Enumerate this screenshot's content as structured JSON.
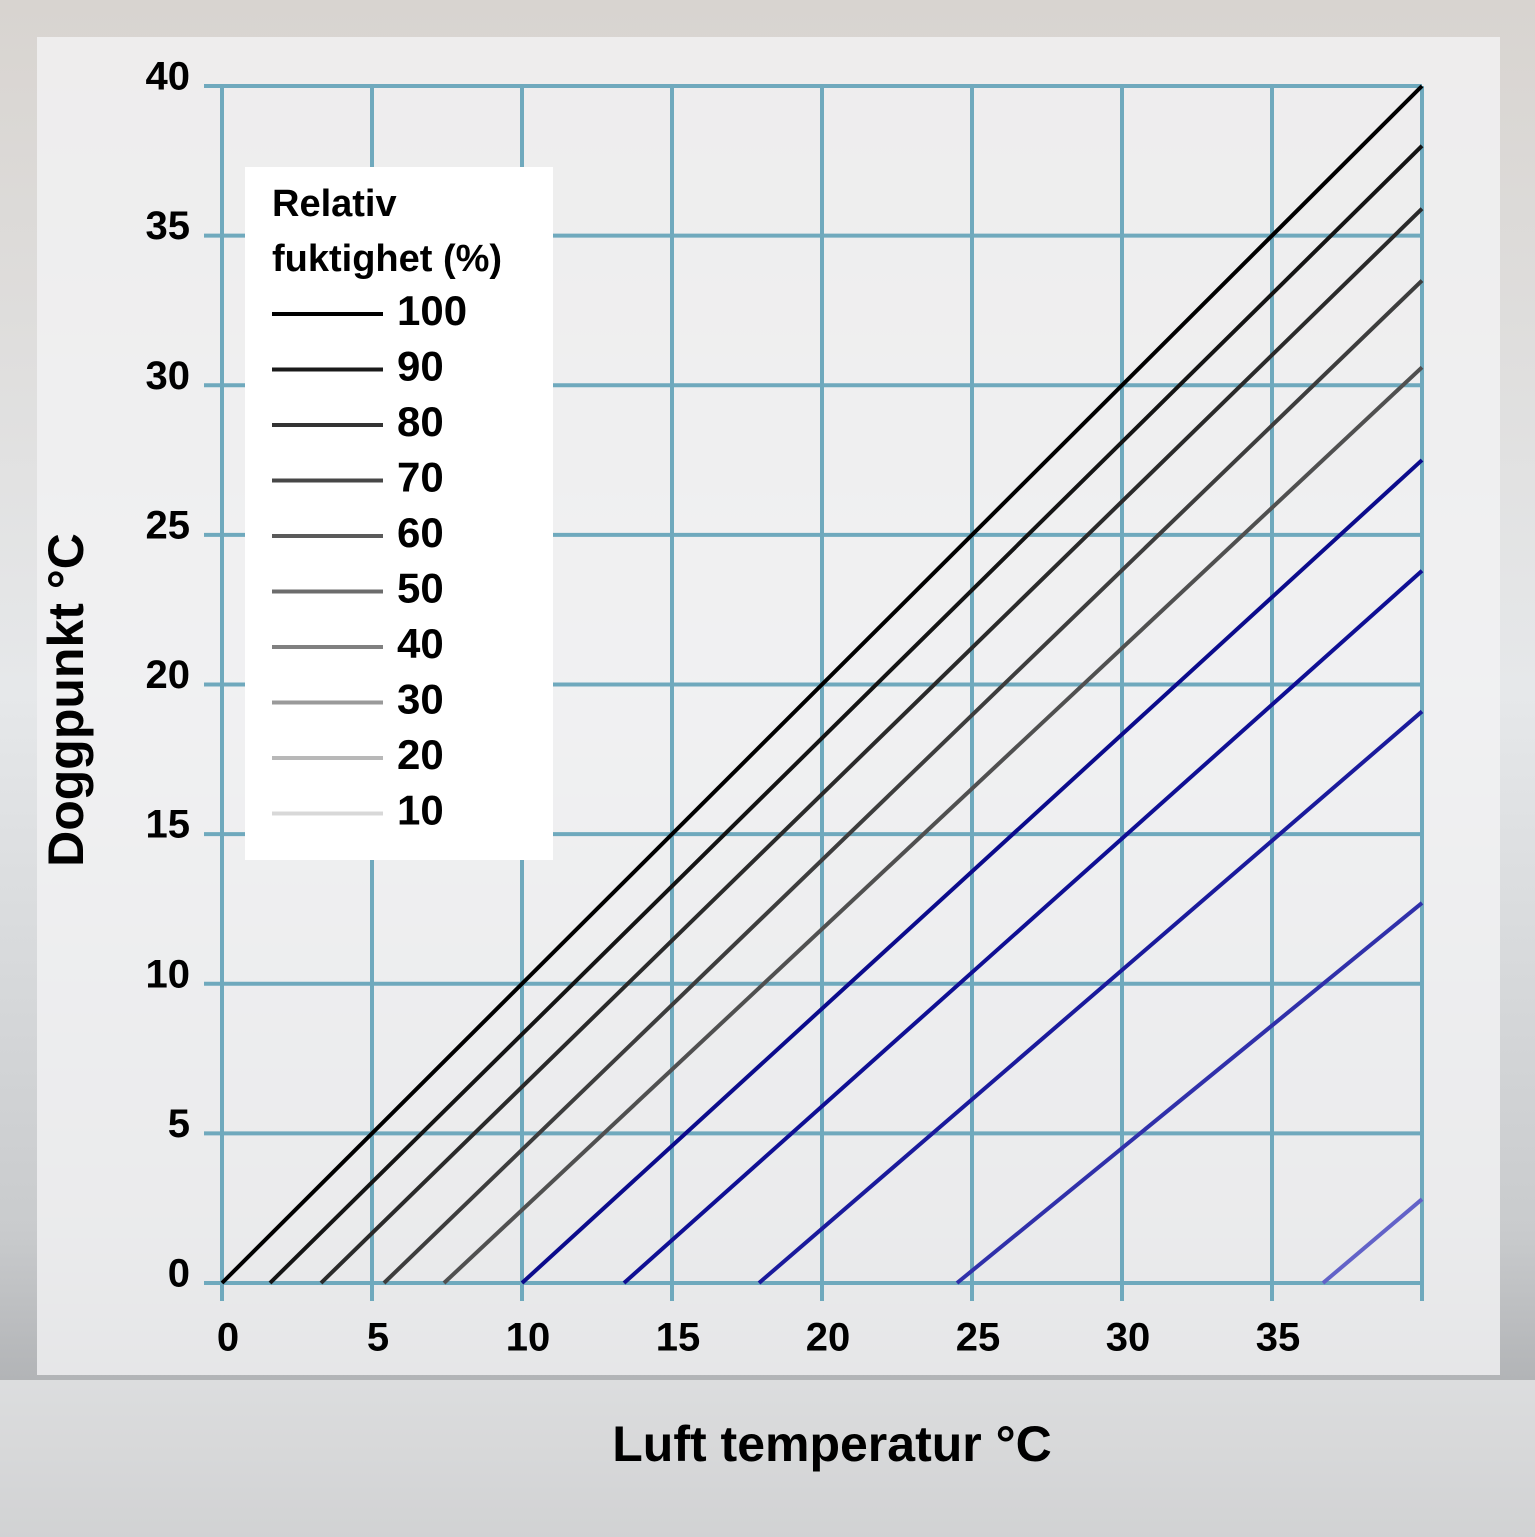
{
  "chart_data": {
    "type": "line",
    "x_label": "Luft temperatur °C",
    "y_label": "Doggpunkt °C",
    "legend_title": [
      "Relativ",
      "fuktighet (%)"
    ],
    "legend_position": "upper left",
    "grid": true,
    "grid_color": "#6fa9bd",
    "xlim": [
      0,
      40
    ],
    "xticks": [
      0,
      5,
      10,
      15,
      20,
      25,
      30,
      35
    ],
    "ylim": [
      0,
      40
    ],
    "yticks": [
      0,
      5,
      10,
      15,
      20,
      25,
      30,
      35,
      40
    ],
    "series": [
      {
        "name": "100",
        "color": "#000000",
        "legend_color": "#000000",
        "x": [
          0,
          40
        ],
        "values": [
          0,
          40
        ]
      },
      {
        "name": "90",
        "color": "#141414",
        "legend_color": "#1a1a1a",
        "x": [
          1.6,
          40
        ],
        "values": [
          0,
          38
        ]
      },
      {
        "name": "80",
        "color": "#2a2a2a",
        "legend_color": "#333333",
        "x": [
          3.3,
          40
        ],
        "values": [
          0,
          35.9
        ]
      },
      {
        "name": "70",
        "color": "#3d3d3d",
        "legend_color": "#474747",
        "x": [
          5.4,
          40
        ],
        "values": [
          0,
          33.5
        ]
      },
      {
        "name": "60",
        "color": "#505050",
        "legend_color": "#5a5a5a",
        "x": [
          7.4,
          40
        ],
        "values": [
          0,
          30.6
        ]
      },
      {
        "name": "50",
        "color": "#0b0b8c",
        "legend_color": "#6c6c6c",
        "x": [
          10,
          40
        ],
        "values": [
          0,
          27.5
        ]
      },
      {
        "name": "40",
        "color": "#0f0f94",
        "legend_color": "#808080",
        "x": [
          13.4,
          40
        ],
        "values": [
          0,
          23.8
        ]
      },
      {
        "name": "30",
        "color": "#1a1a9c",
        "legend_color": "#9a9a9a",
        "x": [
          17.9,
          40
        ],
        "values": [
          0,
          19.1
        ]
      },
      {
        "name": "20",
        "color": "#3030aa",
        "legend_color": "#b8b8b8",
        "x": [
          24.5,
          40
        ],
        "values": [
          0,
          12.7
        ]
      },
      {
        "name": "10",
        "color": "#6262c8",
        "legend_color": "#d8d8d8",
        "x": [
          36.7,
          40
        ],
        "values": [
          0,
          2.8
        ]
      }
    ]
  }
}
